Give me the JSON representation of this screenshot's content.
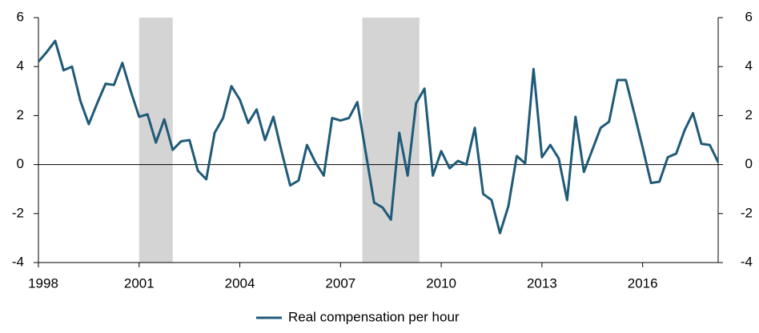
{
  "chart_data": {
    "type": "line",
    "x": [
      1998,
      1998.25,
      1998.5,
      1998.75,
      1999,
      1999.25,
      1999.5,
      1999.75,
      2000,
      2000.25,
      2000.5,
      2000.75,
      2001,
      2001.25,
      2001.5,
      2001.75,
      2002,
      2002.25,
      2002.5,
      2002.75,
      2003,
      2003.25,
      2003.5,
      2003.75,
      2004,
      2004.25,
      2004.5,
      2004.75,
      2005,
      2005.25,
      2005.5,
      2005.75,
      2006,
      2006.25,
      2006.5,
      2006.75,
      2007,
      2007.25,
      2007.5,
      2007.75,
      2008,
      2008.25,
      2008.5,
      2008.75,
      2009,
      2009.25,
      2009.5,
      2009.75,
      2010,
      2010.25,
      2010.5,
      2010.75,
      2011,
      2011.25,
      2011.5,
      2011.75,
      2012,
      2012.25,
      2012.5,
      2012.75,
      2013,
      2013.25,
      2013.5,
      2013.75,
      2014,
      2014.25,
      2014.5,
      2014.75,
      2015,
      2015.25,
      2015.5,
      2015.75,
      2016,
      2016.25,
      2016.5,
      2016.75,
      2017,
      2017.25,
      2017.5,
      2017.75,
      2018,
      2018.25
    ],
    "series": [
      {
        "name": "Real compensation per hour",
        "color": "#1f5a78",
        "values": [
          4.2,
          4.6,
          5.05,
          3.85,
          4.0,
          2.6,
          1.65,
          2.5,
          3.3,
          3.25,
          4.15,
          3.0,
          1.95,
          2.05,
          0.9,
          1.85,
          0.6,
          0.95,
          1.0,
          -0.25,
          -0.6,
          1.3,
          1.9,
          3.2,
          2.65,
          1.7,
          2.25,
          1.0,
          1.95,
          0.5,
          -0.85,
          -0.65,
          0.8,
          0.1,
          -0.45,
          1.9,
          1.8,
          1.9,
          2.55,
          0.5,
          -1.55,
          -1.75,
          -2.25,
          1.3,
          -0.45,
          2.5,
          3.1,
          -0.45,
          0.55,
          -0.15,
          0.15,
          0.0,
          1.5,
          -1.2,
          -1.45,
          -2.8,
          -1.7,
          0.35,
          0.05,
          3.9,
          0.3,
          0.8,
          0.25,
          -1.45,
          1.95,
          -0.3,
          0.6,
          1.5,
          1.75,
          3.45,
          3.45,
          2.1,
          0.7,
          -0.75,
          -0.7,
          0.3,
          0.45,
          1.4,
          2.1,
          0.85,
          0.8,
          0.1
        ]
      }
    ],
    "shaded_periods": [
      [
        2001,
        2002
      ],
      [
        2007.65,
        2009.35
      ]
    ],
    "shade_color": "#d4d4d4",
    "xlim": [
      1998,
      2018.25
    ],
    "xticks": [
      1998,
      2001,
      2004,
      2007,
      2010,
      2013,
      2016
    ],
    "ylim": [
      -4,
      6
    ],
    "yticks": [
      -4,
      -2,
      0,
      2,
      4,
      6
    ],
    "y2lim": [
      -4,
      6
    ],
    "y2ticks": [
      -4,
      -2,
      0,
      2,
      4,
      6
    ],
    "legend": "bottom"
  }
}
